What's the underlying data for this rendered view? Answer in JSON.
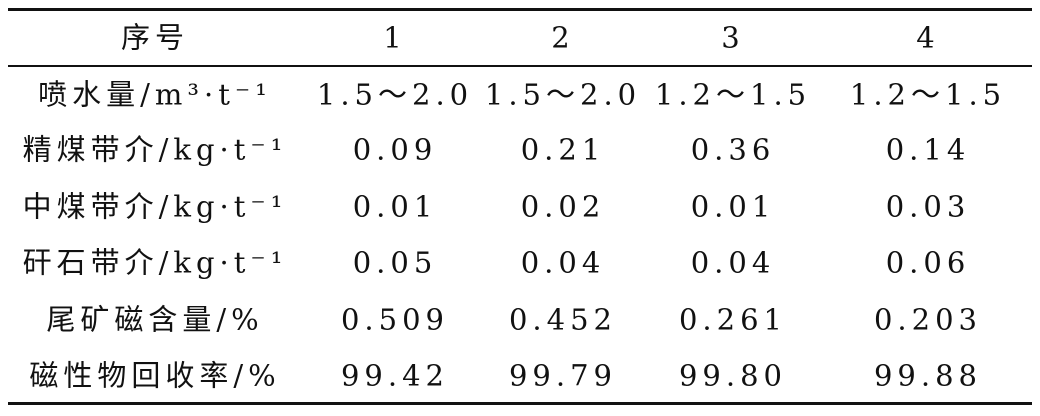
{
  "table": {
    "header": [
      "序号",
      "1",
      "2",
      "3",
      "4"
    ],
    "rows": [
      [
        "喷水量/m³·t⁻¹",
        "1.5～2.0",
        "1.5～2.0",
        "1.2～1.5",
        "1.2～1.5"
      ],
      [
        "精煤带介/kg·t⁻¹",
        "0.09",
        "0.21",
        "0.36",
        "0.14"
      ],
      [
        "中煤带介/kg·t⁻¹",
        "0.01",
        "0.02",
        "0.01",
        "0.03"
      ],
      [
        "矸石带介/kg·t⁻¹",
        "0.05",
        "0.04",
        "0.04",
        "0.06"
      ],
      [
        "尾矿磁含量/%",
        "0.509",
        "0.452",
        "0.261",
        "0.203"
      ],
      [
        "磁性物回收率/%",
        "99.42",
        "99.79",
        "99.80",
        "99.88"
      ]
    ]
  }
}
